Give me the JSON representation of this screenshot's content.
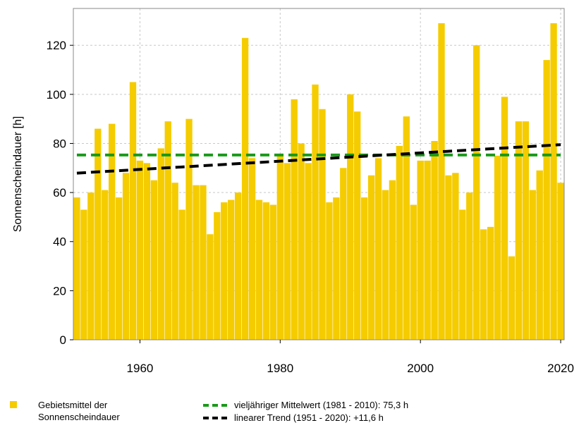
{
  "chart_data": {
    "type": "bar",
    "ylabel": "Sonnenscheindauer [h]",
    "xlabel": "",
    "xlim": [
      1950.5,
      2020.5
    ],
    "ylim": [
      0,
      135
    ],
    "xticks": [
      1960,
      1980,
      2000,
      2020
    ],
    "yticks": [
      0,
      20,
      40,
      60,
      80,
      100,
      120
    ],
    "grid": true,
    "legend_position": "bottom",
    "x": [
      1951,
      1952,
      1953,
      1954,
      1955,
      1956,
      1957,
      1958,
      1959,
      1960,
      1961,
      1962,
      1963,
      1964,
      1965,
      1966,
      1967,
      1968,
      1969,
      1970,
      1971,
      1972,
      1973,
      1974,
      1975,
      1976,
      1977,
      1978,
      1979,
      1980,
      1981,
      1982,
      1983,
      1984,
      1985,
      1986,
      1987,
      1988,
      1989,
      1990,
      1991,
      1992,
      1993,
      1994,
      1995,
      1996,
      1997,
      1998,
      1999,
      2000,
      2001,
      2002,
      2003,
      2004,
      2005,
      2006,
      2007,
      2008,
      2009,
      2010,
      2011,
      2012,
      2013,
      2014,
      2015,
      2016,
      2017,
      2018,
      2019,
      2020
    ],
    "series": [
      {
        "name": "Gebietsmittel der Sonnenscheindauer",
        "color": "#f5cc00",
        "values": [
          58,
          53,
          60,
          86,
          61,
          88,
          58,
          68,
          105,
          73,
          72,
          65,
          78,
          89,
          64,
          53,
          90,
          63,
          63,
          43,
          52,
          56,
          57,
          60,
          123,
          74,
          57,
          56,
          55,
          75,
          72,
          98,
          80,
          72,
          104,
          94,
          56,
          58,
          70,
          100,
          93,
          58,
          67,
          74,
          61,
          65,
          79,
          91,
          55,
          73,
          73,
          81,
          129,
          67,
          68,
          53,
          60,
          120,
          45,
          46,
          75,
          99,
          34,
          89,
          89,
          61,
          69,
          114,
          129,
          64
        ]
      }
    ],
    "reference_lines": [
      {
        "name": "vieljähriger Mittelwert (1981 - 2010): 75,3 h",
        "type": "horizontal",
        "value": 75.3,
        "color": "#1a9a1a",
        "style": "dashed"
      },
      {
        "name": "linearer Trend (1951 - 2020): +11,6 h",
        "type": "trend",
        "x": [
          1951,
          2020
        ],
        "y": [
          67.9,
          79.5
        ],
        "color": "#000000",
        "style": "dashed"
      }
    ]
  },
  "legend": {
    "bars_label_line1": "Gebietsmittel der",
    "bars_label_line2": "Sonnenscheindauer",
    "mean_label": "vieljähriger Mittelwert (1981 - 2010): 75,3 h",
    "trend_label": "linearer Trend (1951 - 2020): +11,6 h"
  }
}
